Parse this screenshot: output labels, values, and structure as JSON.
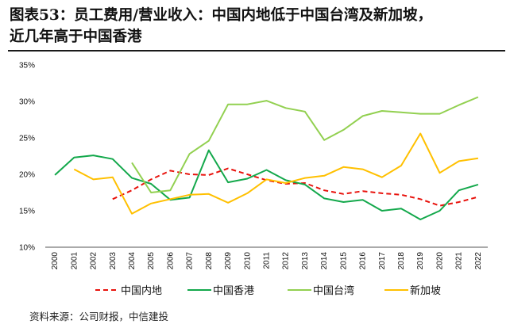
{
  "title": {
    "line1": "图表53：员工费用/营业收入：中国内地低于中国台湾及新加坡，",
    "line2": "近几年高于中国香港"
  },
  "source": "资料来源：公司财报，中信建投",
  "chart_data": {
    "type": "line",
    "title": "图表53：员工费用/营业收入：中国内地低于中国台湾及新加坡，近几年高于中国香港",
    "xlabel": "",
    "ylabel": "",
    "ylim": [
      10,
      35
    ],
    "yticks": [
      "10%",
      "15%",
      "20%",
      "25%",
      "30%",
      "35%"
    ],
    "ytick_values": [
      10,
      15,
      20,
      25,
      30,
      35
    ],
    "categories": [
      "2000",
      "2001",
      "2002",
      "2003",
      "2004",
      "2005",
      "2006",
      "2007",
      "2008",
      "2009",
      "2010",
      "2011",
      "2012",
      "2013",
      "2014",
      "2015",
      "2016",
      "2017",
      "2018",
      "2019",
      "2020",
      "2021",
      "2022"
    ],
    "legend_position": "bottom",
    "series": [
      {
        "name": "中国内地",
        "color": "#e8120c",
        "dash": true,
        "values": [
          null,
          null,
          null,
          16.6,
          17.8,
          19.3,
          20.5,
          20.0,
          19.9,
          20.8,
          20.0,
          19.2,
          18.7,
          18.8,
          17.8,
          17.3,
          17.7,
          17.4,
          17.2,
          16.6,
          15.7,
          16.2,
          16.9
        ]
      },
      {
        "name": "中国香港",
        "color": "#13a84b",
        "dash": false,
        "values": [
          19.9,
          22.3,
          22.6,
          22.1,
          19.5,
          18.7,
          16.5,
          16.8,
          23.3,
          18.9,
          19.4,
          20.6,
          19.2,
          18.6,
          16.7,
          16.2,
          16.5,
          15.0,
          15.3,
          13.8,
          15.0,
          17.8,
          18.6
        ]
      },
      {
        "name": "中国台湾",
        "color": "#92d050",
        "dash": false,
        "values": [
          null,
          null,
          null,
          null,
          21.6,
          17.5,
          17.8,
          22.8,
          24.6,
          29.6,
          29.6,
          30.1,
          29.1,
          28.6,
          24.7,
          26.1,
          28.0,
          28.7,
          28.5,
          28.3,
          28.3,
          29.5,
          30.6
        ]
      },
      {
        "name": "新加坡",
        "color": "#ffc000",
        "dash": false,
        "values": [
          null,
          20.7,
          19.3,
          19.6,
          14.6,
          16.0,
          16.6,
          17.2,
          17.3,
          16.1,
          17.4,
          19.3,
          18.8,
          19.5,
          19.8,
          21.0,
          20.7,
          19.6,
          21.2,
          25.6,
          20.2,
          21.8,
          22.2
        ]
      }
    ]
  }
}
